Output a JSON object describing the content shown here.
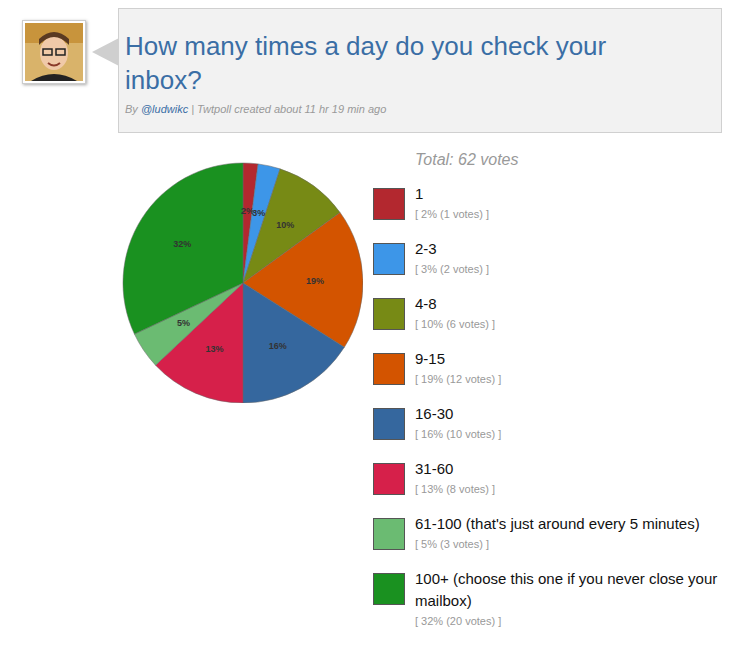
{
  "chart_data": {
    "type": "pie",
    "title": "How many times a day do you check your inbox?",
    "byline": {
      "prefix": "By",
      "author": "@ludwikc",
      "rest": "| Twtpoll created about 11 hr 19 min ago"
    },
    "total_label": "Total: 62 votes",
    "categories": [
      "1",
      "2-3",
      "4-8",
      "9-15",
      "16-30",
      "31-60",
      "61-100 (that's just around every 5 minutes)",
      "100+ (choose this one if you never close your mailbox)"
    ],
    "values": [
      2,
      3,
      10,
      19,
      16,
      13,
      5,
      32
    ],
    "value_labels": [
      "2%",
      "3%",
      "10%",
      "19%",
      "16%",
      "13%",
      "5%",
      "32%"
    ],
    "details": [
      "[ 2% (1 votes) ]",
      "[ 3% (2 votes) ]",
      "[ 10% (6 votes) ]",
      "[ 19% (12 votes) ]",
      "[ 16% (10 votes) ]",
      "[ 13% (8 votes) ]",
      "[ 5% (3 votes) ]",
      "[ 32% (20 votes) ]"
    ],
    "colors": [
      "#b3282f",
      "#3d96e8",
      "#778a15",
      "#d35400",
      "#35679e",
      "#d6204a",
      "#6bbb72",
      "#1a9120"
    ],
    "data_labels": true
  }
}
